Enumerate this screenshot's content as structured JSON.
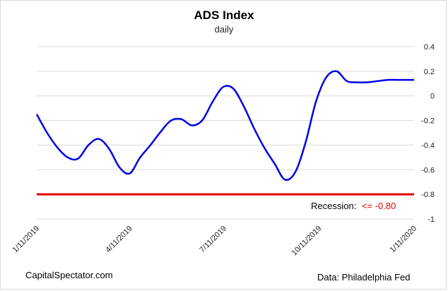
{
  "chart_data": {
    "type": "line",
    "title": "ADS Index",
    "subtitle": "daily",
    "ylim": [
      -1,
      0.4
    ],
    "yticks": [
      0.4,
      0.2,
      0,
      -0.2,
      -0.4,
      -0.6,
      -0.8,
      -1
    ],
    "ytick_labels": [
      "0.4",
      "0.2",
      "0",
      "-0.2",
      "-0.4",
      "-0.6",
      "-0.8",
      "-1"
    ],
    "y_axis_side": "right",
    "grid": "horizontal",
    "xlim": [
      "2019-01-11",
      "2020-01-11"
    ],
    "xtick_labels": [
      "1/11/2019",
      "4/11/2019",
      "7/11/2019",
      "10/11/2019",
      "1/11/2020"
    ],
    "xticks": [
      "2019-01-11",
      "2019-04-11",
      "2019-07-11",
      "2019-10-11",
      "2020-01-11"
    ],
    "series": [
      {
        "color": "#0000e6",
        "x": [
          "2019-01-11",
          "2019-01-21",
          "2019-01-31",
          "2019-02-10",
          "2019-02-20",
          "2019-03-02",
          "2019-03-12",
          "2019-03-22",
          "2019-04-01",
          "2019-04-11",
          "2019-04-21",
          "2019-05-01",
          "2019-05-11",
          "2019-05-21",
          "2019-05-31",
          "2019-06-10",
          "2019-06-20",
          "2019-06-30",
          "2019-07-10",
          "2019-07-20",
          "2019-07-30",
          "2019-08-09",
          "2019-08-19",
          "2019-08-29",
          "2019-09-08",
          "2019-09-18",
          "2019-09-28",
          "2019-10-08",
          "2019-10-18",
          "2019-10-28",
          "2019-11-07",
          "2019-11-17",
          "2019-11-27",
          "2019-12-07",
          "2019-12-17",
          "2019-12-27",
          "2020-01-11"
        ],
        "y": [
          -0.15,
          -0.3,
          -0.42,
          -0.5,
          -0.51,
          -0.4,
          -0.35,
          -0.43,
          -0.58,
          -0.63,
          -0.5,
          -0.4,
          -0.29,
          -0.2,
          -0.19,
          -0.24,
          -0.2,
          -0.05,
          0.07,
          0.06,
          -0.08,
          -0.26,
          -0.42,
          -0.55,
          -0.68,
          -0.62,
          -0.38,
          -0.05,
          0.15,
          0.2,
          0.12,
          0.11,
          0.11,
          0.12,
          0.13,
          0.13,
          0.13
        ]
      }
    ],
    "threshold": {
      "y": -0.8,
      "color": "#e60000",
      "label": "Recession:",
      "label_value": "<= -0.80",
      "label_value_color": "#e60000"
    }
  },
  "footer": {
    "left": "CapitalSpectator.com",
    "right": "Data: Philadelphia Fed"
  },
  "colors": {
    "line": "#0000e6",
    "threshold": "#e60000",
    "grid": "#d9d9d9"
  }
}
